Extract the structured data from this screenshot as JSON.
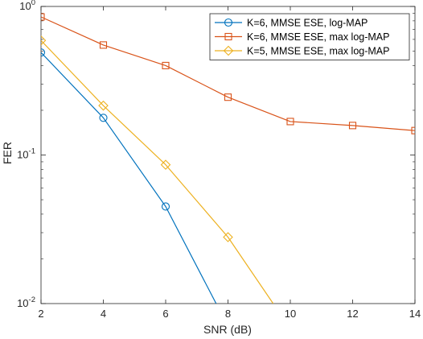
{
  "chart_data": {
    "type": "line",
    "xlabel": "SNR (dB)",
    "ylabel": "FER",
    "xlim": [
      2,
      14
    ],
    "ylim": [
      0.01,
      1
    ],
    "yscale": "log",
    "xticks": [
      2,
      4,
      6,
      8,
      10,
      12,
      14
    ],
    "yticks": [
      {
        "value": 0.01,
        "base": "10",
        "exp": "-2"
      },
      {
        "value": 0.1,
        "base": "10",
        "exp": "-1"
      },
      {
        "value": 1,
        "base": "10",
        "exp": "0"
      }
    ],
    "grid": false,
    "legend_position": "top-right",
    "series": [
      {
        "name": "K=6, MMSE ESE, log-MAP",
        "color": "#0072BD",
        "marker": "circle",
        "x": [
          2,
          4,
          6,
          7.62
        ],
        "y": [
          0.49,
          0.178,
          0.045,
          0.01
        ],
        "markers_x": [
          2,
          4,
          6
        ],
        "markers_y": [
          0.49,
          0.178,
          0.045
        ]
      },
      {
        "name": "K=6, MMSE ESE, max log-MAP",
        "color": "#D95319",
        "marker": "square",
        "x": [
          2,
          4,
          6,
          8,
          10,
          12,
          14
        ],
        "y": [
          0.85,
          0.55,
          0.4,
          0.245,
          0.168,
          0.158,
          0.146
        ],
        "markers_x": [
          2,
          4,
          6,
          8,
          10,
          12,
          14
        ],
        "markers_y": [
          0.85,
          0.55,
          0.4,
          0.245,
          0.168,
          0.158,
          0.146
        ]
      },
      {
        "name": "K=5, MMSE ESE, max log-MAP",
        "color": "#EDB120",
        "marker": "diamond",
        "x": [
          2,
          4,
          6,
          8,
          9.45
        ],
        "y": [
          0.59,
          0.215,
          0.086,
          0.028,
          0.01
        ],
        "markers_x": [
          2,
          4,
          6,
          8
        ],
        "markers_y": [
          0.59,
          0.215,
          0.086,
          0.028
        ]
      }
    ]
  }
}
